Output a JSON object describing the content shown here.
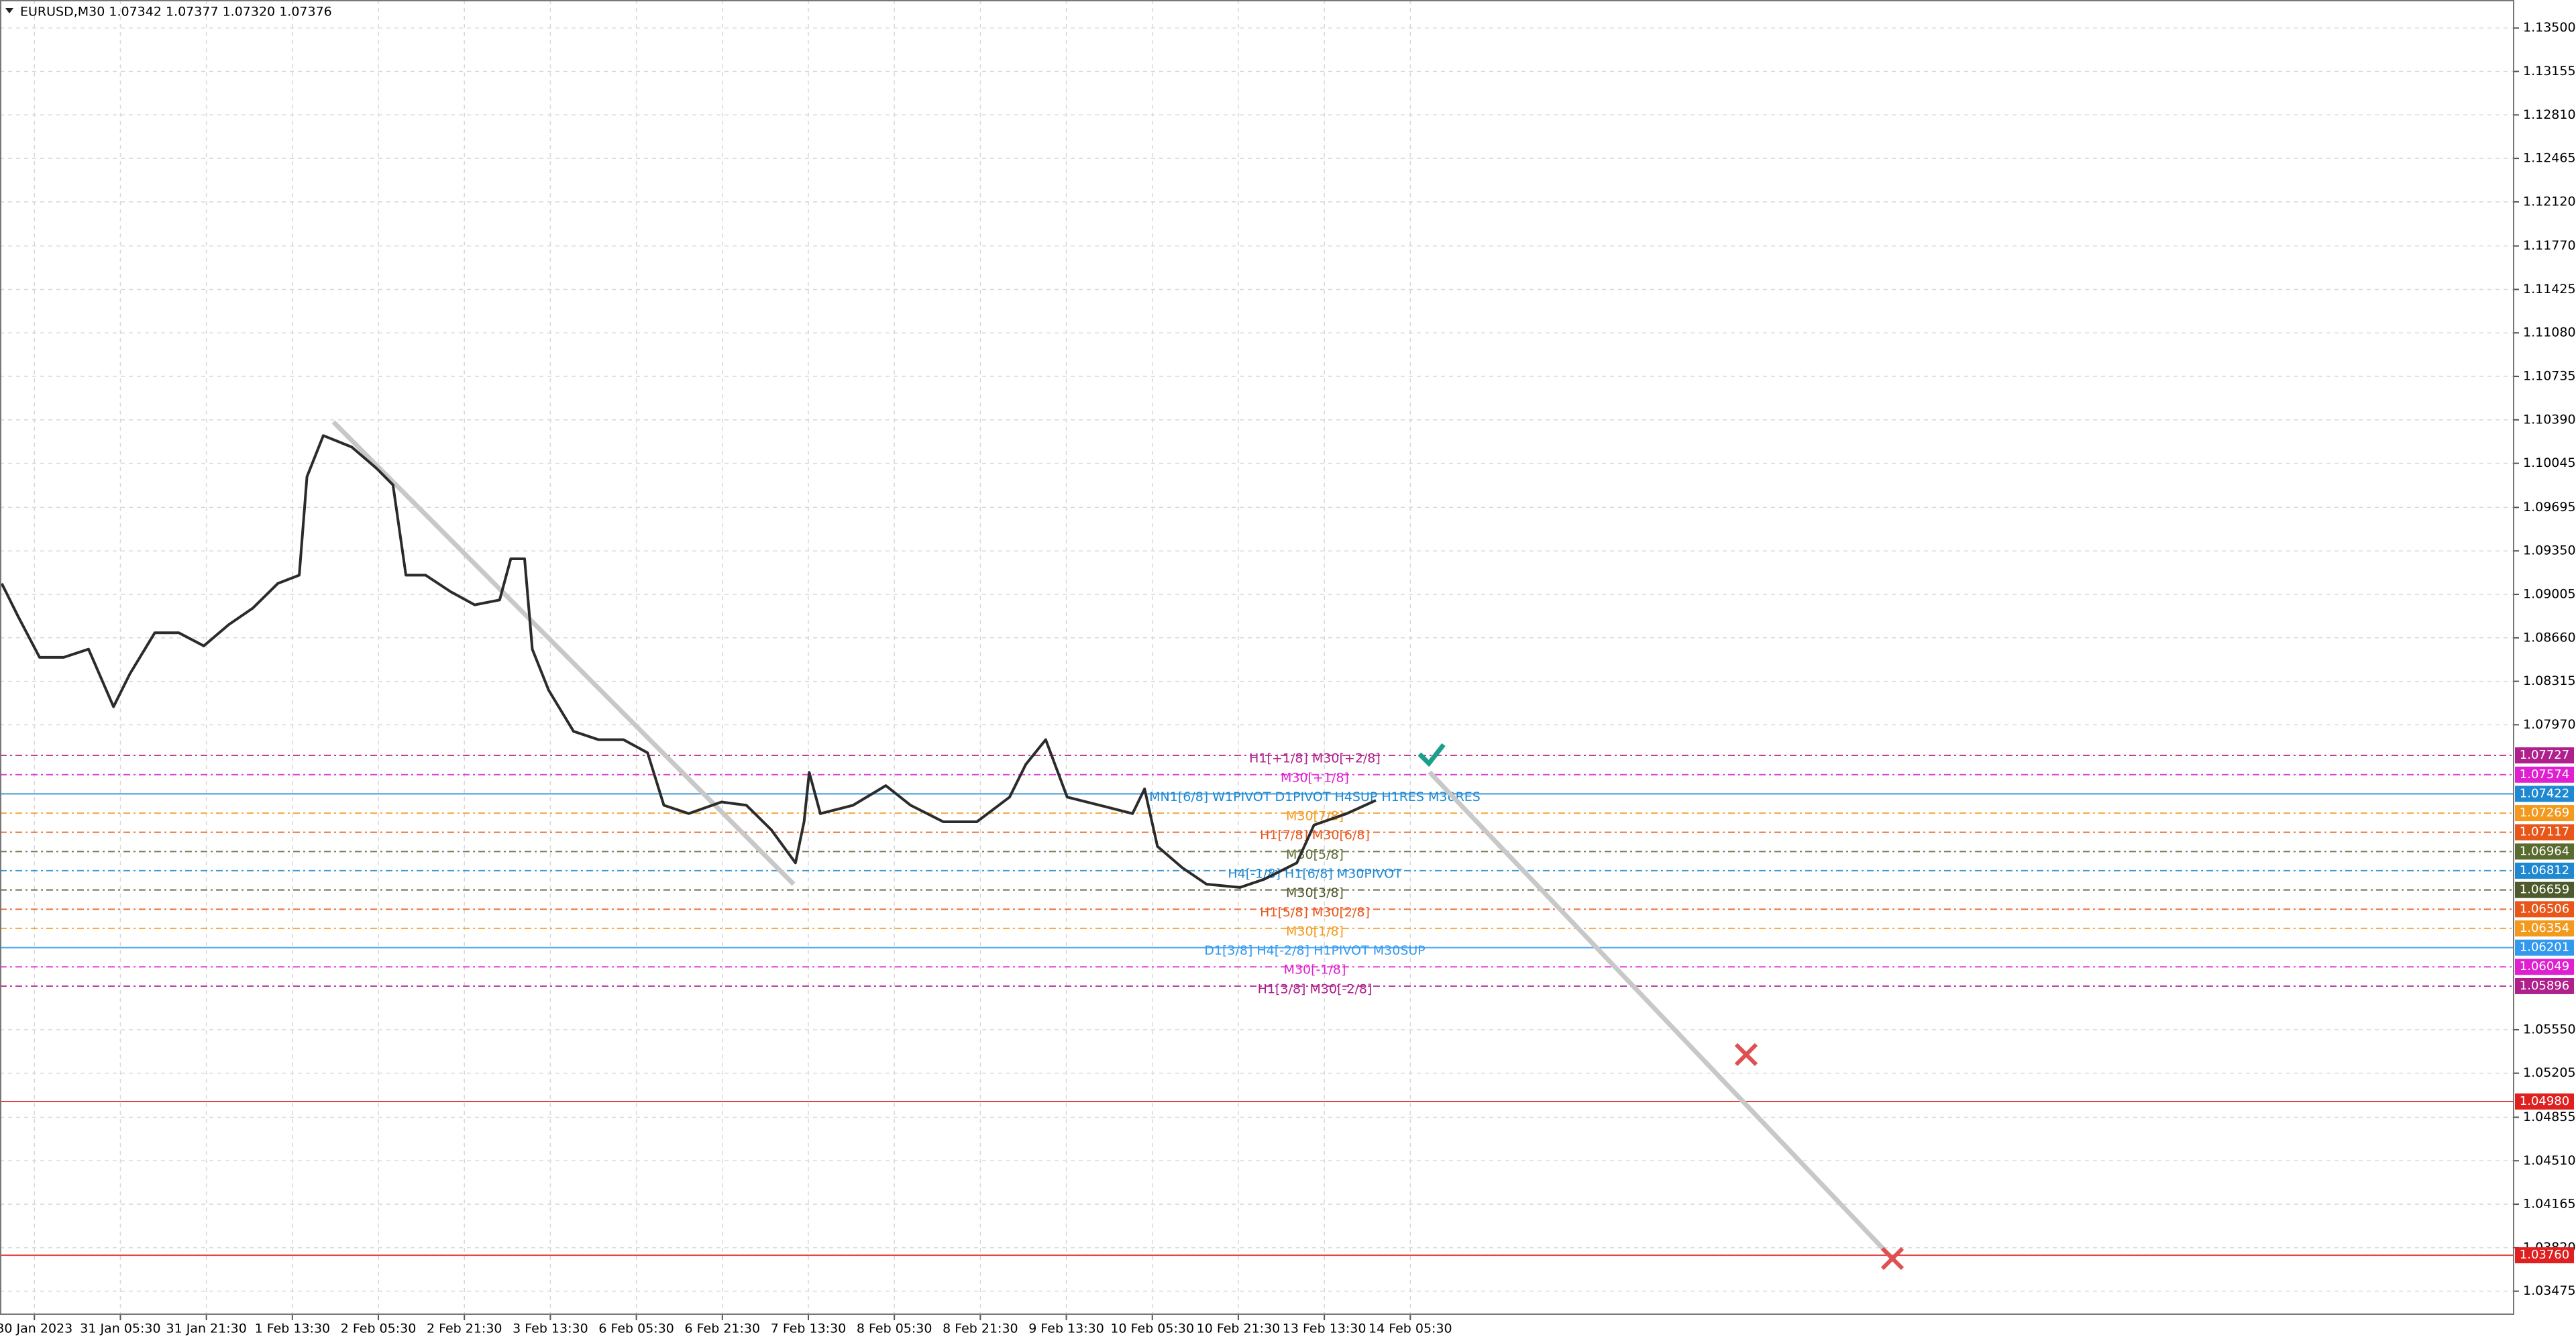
{
  "chart_data": {
    "type": "line",
    "title": "EURUSD,M30  1.07342 1.07377 1.07320 1.07376",
    "color": "#2b2b2b",
    "grid": true,
    "xlim": [
      -0.4,
      28.83
    ],
    "ylim": [
      1.03287,
      1.13722
    ],
    "xticks": [
      {
        "value": 0,
        "label": "30 Jan 2023"
      },
      {
        "value": 1,
        "label": "31 Jan 05:30"
      },
      {
        "value": 2,
        "label": "31 Jan 21:30"
      },
      {
        "value": 3,
        "label": "1 Feb 13:30"
      },
      {
        "value": 4,
        "label": "2 Feb 05:30"
      },
      {
        "value": 5,
        "label": "2 Feb 21:30"
      },
      {
        "value": 6,
        "label": "3 Feb 13:30"
      },
      {
        "value": 7,
        "label": "6 Feb 05:30"
      },
      {
        "value": 8,
        "label": "6 Feb 21:30"
      },
      {
        "value": 9,
        "label": "7 Feb 13:30"
      },
      {
        "value": 10,
        "label": "8 Feb 05:30"
      },
      {
        "value": 11,
        "label": "8 Feb 21:30"
      },
      {
        "value": 12,
        "label": "9 Feb 13:30"
      },
      {
        "value": 13,
        "label": "10 Feb 05:30"
      },
      {
        "value": 14,
        "label": "10 Feb 21:30"
      },
      {
        "value": 15,
        "label": "13 Feb 13:30"
      },
      {
        "value": 16,
        "label": "14 Feb 05:30"
      }
    ],
    "yticks": [
      {
        "value": 1.135,
        "label": "1.13500"
      },
      {
        "value": 1.13155,
        "label": "1.13155"
      },
      {
        "value": 1.1281,
        "label": "1.12810"
      },
      {
        "value": 1.12465,
        "label": "1.12465"
      },
      {
        "value": 1.1212,
        "label": "1.12120"
      },
      {
        "value": 1.1177,
        "label": "1.11770"
      },
      {
        "value": 1.11425,
        "label": "1.11425"
      },
      {
        "value": 1.1108,
        "label": "1.11080"
      },
      {
        "value": 1.10735,
        "label": "1.10735"
      },
      {
        "value": 1.1039,
        "label": "1.10390"
      },
      {
        "value": 1.10045,
        "label": "1.10045"
      },
      {
        "value": 1.09695,
        "label": "1.09695"
      },
      {
        "value": 1.0935,
        "label": "1.09350"
      },
      {
        "value": 1.09005,
        "label": "1.09005"
      },
      {
        "value": 1.0866,
        "label": "1.08660"
      },
      {
        "value": 1.08315,
        "label": "1.08315"
      },
      {
        "value": 1.0797,
        "label": "1.07970"
      },
      {
        "value": 1.0555,
        "label": "1.05550"
      },
      {
        "value": 1.05205,
        "label": "1.05205"
      },
      {
        "value": 1.04855,
        "label": "1.04855"
      },
      {
        "value": 1.0451,
        "label": "1.04510"
      },
      {
        "value": 1.04165,
        "label": "1.04165"
      },
      {
        "value": 1.0382,
        "label": "1.03820"
      },
      {
        "value": 1.03475,
        "label": "1.03475"
      }
    ],
    "x": [
      -0.38,
      -0.19,
      0.06,
      0.34,
      0.63,
      0.92,
      1.11,
      1.4,
      1.68,
      1.97,
      2.26,
      2.54,
      2.83,
      3.08,
      3.17,
      3.36,
      3.69,
      3.98,
      4.17,
      4.32,
      4.55,
      4.84,
      5.12,
      5.41,
      5.54,
      5.7,
      5.79,
      5.98,
      6.27,
      6.56,
      6.85,
      7.13,
      7.32,
      7.61,
      7.99,
      8.28,
      8.57,
      8.85,
      8.95,
      9.01,
      9.14,
      9.52,
      9.9,
      10.19,
      10.57,
      10.96,
      11.34,
      11.53,
      11.76,
      12.01,
      12.39,
      12.77,
      12.91,
      13.06,
      13.35,
      13.63,
      14.02,
      14.3,
      14.68,
      14.88,
      15.26,
      15.6
    ],
    "values": [
      1.09091,
      1.08831,
      1.08505,
      1.08505,
      1.0857,
      1.08113,
      1.08374,
      1.087,
      1.087,
      1.08596,
      1.08765,
      1.08896,
      1.09091,
      1.09157,
      1.09939,
      1.10265,
      1.10174,
      1.10004,
      1.09874,
      1.09157,
      1.09157,
      1.09026,
      1.08922,
      1.08961,
      1.09287,
      1.09287,
      1.0857,
      1.08244,
      1.07918,
      1.07852,
      1.07852,
      1.07748,
      1.07331,
      1.07265,
      1.07357,
      1.07331,
      1.07135,
      1.06874,
      1.072,
      1.07592,
      1.07265,
      1.07331,
      1.07487,
      1.07331,
      1.072,
      1.072,
      1.07396,
      1.07657,
      1.07852,
      1.07396,
      1.07331,
      1.07265,
      1.07461,
      1.07005,
      1.06835,
      1.06705,
      1.06679,
      1.06744,
      1.06874,
      1.07174,
      1.07265,
      1.0737
    ],
    "levels": [
      {
        "price": 1.07727,
        "label": "H1[+1/8] M30[+2/8]",
        "color": "#b0208c"
      },
      {
        "price": 1.07574,
        "label": "M30[+1/8]",
        "color": "#e020d0"
      },
      {
        "price": 1.07422,
        "label": "MN1[6/8] W1PIVOT D1PIVOT H4SUP H1RES M30RES",
        "color": "#1e88d0"
      },
      {
        "price": 1.07269,
        "label": "M30[7/8]",
        "color": "#f39a1e"
      },
      {
        "price": 1.07117,
        "label": "H1[7/8] M30[6/8]",
        "color": "#e8561a"
      },
      {
        "price": 1.06964,
        "label": "M30[5/8]",
        "color": "#5a6b30"
      },
      {
        "price": 1.06812,
        "label": "H4[-1/8] H1[6/8] M30PIVOT",
        "color": "#1e88d0"
      },
      {
        "price": 1.06659,
        "label": "M30[3/8]",
        "color": "#4f5a2c"
      },
      {
        "price": 1.06506,
        "label": "H1[5/8] M30[2/8]",
        "color": "#e8561a"
      },
      {
        "price": 1.06354,
        "label": "M30[1/8]",
        "color": "#f39a1e"
      },
      {
        "price": 1.06201,
        "label": "D1[3/8] H4[-2/8] H1PIVOT M30SUP",
        "color": "#3399ee"
      },
      {
        "price": 1.06049,
        "label": "M30[-1/8]",
        "color": "#e020d0"
      },
      {
        "price": 1.05896,
        "label": "H1[3/8] M30[-2/8]",
        "color": "#b0208c"
      },
      {
        "price": {
          "value": 1.0498,
          "label": "1.04980"
        },
        "color": "#e02020"
      },
      {
        "price": {
          "value": 1.0376,
          "label": "1.03760"
        },
        "color": "#e02020"
      }
    ]
  }
}
